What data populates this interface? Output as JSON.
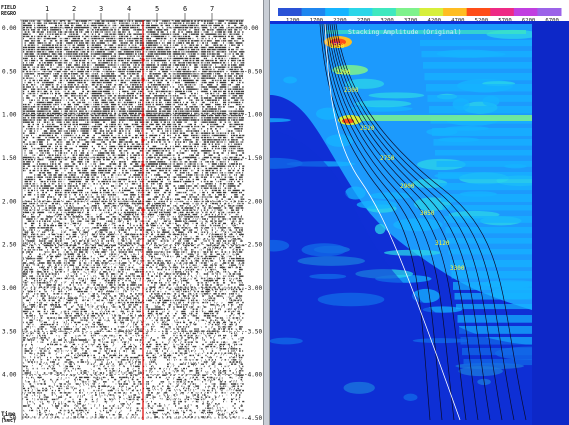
{
  "left_panel": {
    "header_line1": "FIELD",
    "header_line2": "REGRO",
    "trace_labels": [
      "1",
      "2",
      "3",
      "4",
      "5",
      "6",
      "7"
    ],
    "time_labels_left": [
      "0.00",
      "0.50",
      "1.00",
      "1.50",
      "2.00",
      "2.50",
      "3.00",
      "3.50",
      "4.00",
      "4.50"
    ],
    "time_labels_right": [
      "0.00",
      "-0.50",
      "-1.00",
      "-1.50",
      "-2.00",
      "-2.50",
      "-3.00",
      "-3.50",
      "-4.00",
      "-4.50"
    ],
    "axis_label_line1": "Time",
    "axis_label_line2": "(sec)",
    "cursor_color": "#e01010"
  },
  "right_panel": {
    "colorbar_ticks": [
      "1200",
      "1700",
      "2200",
      "2700",
      "3200",
      "3700",
      "4200",
      "4700",
      "5200",
      "5700",
      "6200",
      "6700"
    ],
    "colorbar_colors": [
      "#2a52d6",
      "#1f86ef",
      "#16b4ff",
      "#2bd6e8",
      "#3fe8bf",
      "#7ef28c",
      "#d7ef3a",
      "#ffbd22",
      "#ff4d18",
      "#ee2a85",
      "#c13fe0",
      "#9c63e8"
    ],
    "plot_title": "Stacking Amplitude (Original)",
    "velocity_annotations": [
      "1750",
      "2200",
      "2300",
      "2520",
      "2750",
      "2900",
      "3050",
      "3120",
      "3300"
    ],
    "background_color": "#0f2fd6",
    "fill_color": "#1da0ff"
  }
}
